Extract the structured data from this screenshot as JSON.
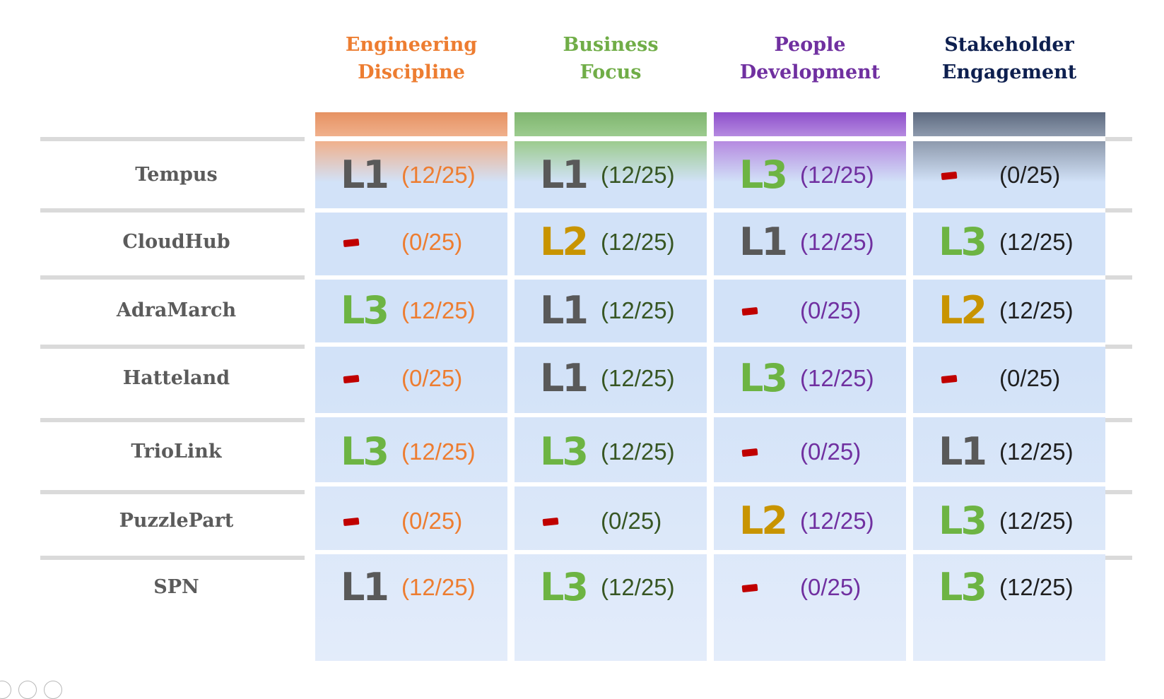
{
  "colors": {
    "level_L1": "#595959",
    "level_L2": "#c89400",
    "level_L3": "#6db443",
    "dash": "#c00000",
    "row_label": "#5b5b5b",
    "cell_fill": "#d2e2f8",
    "separator": "#dadada"
  },
  "columns": [
    {
      "id": "engineering",
      "title_lines": [
        "Engineering",
        "Discipline"
      ],
      "title_color": "#ed7d31",
      "score_color": "#ed7d31",
      "bar_top": "#e69262",
      "bar_bottom": "#f0b08c"
    },
    {
      "id": "business",
      "title_lines": [
        "Business",
        "Focus"
      ],
      "title_color": "#70ad47",
      "score_color": "#375623",
      "bar_top": "#7fb66f",
      "bar_bottom": "#9ccb8e"
    },
    {
      "id": "people",
      "title_lines": [
        "People",
        "Development"
      ],
      "title_color": "#7030a0",
      "score_color": "#7030a0",
      "bar_top": "#8e4fcb",
      "bar_bottom": "#b58ae0"
    },
    {
      "id": "stakeholder",
      "title_lines": [
        "Stakeholder",
        "Engagement"
      ],
      "title_color": "#0d1f4f",
      "score_color": "#1f1f1f",
      "bar_top": "#5d6a80",
      "bar_bottom": "#8e9aad"
    }
  ],
  "rows": [
    {
      "name": "Tempus",
      "cells": [
        {
          "level": "L1",
          "score": "(12/25)"
        },
        {
          "level": "L1",
          "score": "(12/25)"
        },
        {
          "level": "L3",
          "score": "(12/25)"
        },
        {
          "level": "-",
          "score": "(0/25)"
        }
      ]
    },
    {
      "name": "CloudHub",
      "cells": [
        {
          "level": "-",
          "score": "(0/25)"
        },
        {
          "level": "L2",
          "score": "(12/25)"
        },
        {
          "level": "L1",
          "score": "(12/25)"
        },
        {
          "level": "L3",
          "score": "(12/25)"
        }
      ]
    },
    {
      "name": "AdraMarch",
      "cells": [
        {
          "level": "L3",
          "score": "(12/25)"
        },
        {
          "level": "L1",
          "score": "(12/25)"
        },
        {
          "level": "-",
          "score": "(0/25)"
        },
        {
          "level": "L2",
          "score": "(12/25)"
        }
      ]
    },
    {
      "name": "Hatteland",
      "cells": [
        {
          "level": "-",
          "score": "(0/25)"
        },
        {
          "level": "L1",
          "score": "(12/25)"
        },
        {
          "level": "L3",
          "score": "(12/25)"
        },
        {
          "level": "-",
          "score": "(0/25)"
        }
      ]
    },
    {
      "name": "TrioLink",
      "cells": [
        {
          "level": "L3",
          "score": "(12/25)"
        },
        {
          "level": "L3",
          "score": "(12/25)"
        },
        {
          "level": "-",
          "score": "(0/25)"
        },
        {
          "level": "L1",
          "score": "(12/25)"
        }
      ]
    },
    {
      "name": "PuzzlePart",
      "cells": [
        {
          "level": "-",
          "score": "(0/25)"
        },
        {
          "level": "-",
          "score": "(0/25)"
        },
        {
          "level": "L2",
          "score": "(12/25)"
        },
        {
          "level": "L3",
          "score": "(12/25)"
        }
      ]
    },
    {
      "name": "SPN",
      "cells": [
        {
          "level": "L1",
          "score": "(12/25)"
        },
        {
          "level": "L3",
          "score": "(12/25)"
        },
        {
          "level": "-",
          "score": "(0/25)"
        },
        {
          "level": "L3",
          "score": "(12/25)"
        }
      ]
    }
  ],
  "footer_icons": [
    "slide-icon",
    "zoom-icon",
    "options-icon"
  ]
}
